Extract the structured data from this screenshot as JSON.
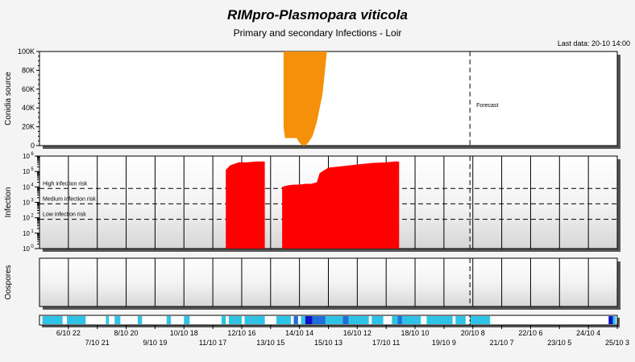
{
  "title": "RIMpro-Plasmopara viticola",
  "subtitle": "Primary and secondary Infections - Loir",
  "last_data": "Last data: 20-10 14:00",
  "chart_data": [
    {
      "type": "area",
      "panel": "conidia",
      "ylabel": "Conidia source",
      "yticks": [
        "0",
        "20K",
        "40K",
        "60K",
        "80K",
        "100K"
      ],
      "ylim": [
        0,
        100000
      ],
      "xlim": [
        0,
        20
      ],
      "forecast_x": 14.9,
      "forecast_label": "Forecast",
      "color": "#f5900a",
      "series": [
        {
          "x": [
            8.45,
            8.5,
            8.65,
            8.8,
            8.9,
            9.0,
            9.1,
            9.2,
            9.3,
            9.45,
            9.6,
            9.8,
            9.95
          ],
          "top": [
            100000,
            100000,
            100000,
            100000,
            100000,
            100000,
            100000,
            100000,
            100000,
            100000,
            100000,
            100000,
            100000
          ],
          "bottom": [
            20000,
            8000,
            8000,
            8000,
            8000,
            3000,
            0,
            0,
            3000,
            10000,
            25000,
            55000,
            100000
          ]
        }
      ]
    },
    {
      "type": "area",
      "panel": "infection",
      "ylabel": "Infection",
      "log_scale": true,
      "ylim_exp": [
        0,
        6
      ],
      "ytick_base": "10",
      "ytick_exps": [
        "0",
        "1",
        "2",
        "3",
        "4",
        "5",
        "6"
      ],
      "thresholds": [
        {
          "label": "High infection risk",
          "exp": 3.9
        },
        {
          "label": "Medium infection risk",
          "exp": 2.9
        },
        {
          "label": "Low infection risk",
          "exp": 1.9
        }
      ],
      "color": "#ff0000",
      "series": [
        {
          "x": [
            6.45,
            6.6,
            6.9,
            7.2,
            7.5,
            7.8
          ],
          "y_exp": [
            5.1,
            5.4,
            5.6,
            5.6,
            5.65,
            5.65
          ]
        },
        {
          "x": [
            8.4,
            8.6,
            8.8,
            9.0,
            9.2,
            9.4,
            9.6,
            9.7,
            10.0,
            10.5,
            11.0,
            11.5,
            12.0,
            12.3,
            12.45
          ],
          "y_exp": [
            4.0,
            4.1,
            4.15,
            4.15,
            4.2,
            4.2,
            4.3,
            4.9,
            5.25,
            5.35,
            5.45,
            5.55,
            5.6,
            5.65,
            5.65
          ]
        }
      ]
    },
    {
      "type": "area",
      "panel": "oospores",
      "ylabel": "Oospores",
      "series": []
    },
    {
      "type": "heatmap",
      "panel": "timeline",
      "segments": [
        {
          "x0": 0.1,
          "x1": 0.8,
          "level": "light"
        },
        {
          "x0": 0.95,
          "x1": 1.6,
          "level": "light"
        },
        {
          "x0": 2.3,
          "x1": 2.4,
          "level": "light"
        },
        {
          "x0": 2.6,
          "x1": 2.8,
          "level": "light"
        },
        {
          "x0": 3.4,
          "x1": 3.55,
          "level": "light"
        },
        {
          "x0": 4.4,
          "x1": 4.55,
          "level": "light"
        },
        {
          "x0": 5.0,
          "x1": 5.2,
          "level": "light"
        },
        {
          "x0": 6.3,
          "x1": 6.45,
          "level": "light"
        },
        {
          "x0": 6.55,
          "x1": 7.0,
          "level": "light"
        },
        {
          "x0": 7.1,
          "x1": 7.8,
          "level": "light"
        },
        {
          "x0": 8.2,
          "x1": 8.7,
          "level": "light"
        },
        {
          "x0": 8.8,
          "x1": 8.95,
          "level": "medium"
        },
        {
          "x0": 9.05,
          "x1": 9.2,
          "level": "light"
        },
        {
          "x0": 9.2,
          "x1": 9.45,
          "level": "dark"
        },
        {
          "x0": 9.45,
          "x1": 9.9,
          "level": "medium"
        },
        {
          "x0": 9.9,
          "x1": 10.5,
          "level": "light"
        },
        {
          "x0": 10.5,
          "x1": 10.7,
          "level": "medium"
        },
        {
          "x0": 10.7,
          "x1": 11.4,
          "level": "light"
        },
        {
          "x0": 11.5,
          "x1": 11.9,
          "level": "light"
        },
        {
          "x0": 12.2,
          "x1": 12.4,
          "level": "light"
        },
        {
          "x0": 12.4,
          "x1": 12.55,
          "level": "medium"
        },
        {
          "x0": 12.55,
          "x1": 13.2,
          "level": "light"
        },
        {
          "x0": 13.4,
          "x1": 14.3,
          "level": "light"
        },
        {
          "x0": 14.4,
          "x1": 14.75,
          "level": "light"
        },
        {
          "x0": 14.9,
          "x1": 15.6,
          "level": "light"
        },
        {
          "x0": 19.7,
          "x1": 19.85,
          "level": "dark"
        },
        {
          "x0": 19.85,
          "x1": 19.95,
          "level": "light"
        }
      ],
      "colors": {
        "light": "#2ec3e6",
        "medium": "#1e6fd8",
        "dark": "#0a10c8"
      }
    }
  ],
  "x_ticks_upper": [
    {
      "x": 1,
      "label": "6/10 22"
    },
    {
      "x": 3,
      "label": "8/10 20"
    },
    {
      "x": 5,
      "label": "10/10 18"
    },
    {
      "x": 7,
      "label": "12/10 16"
    },
    {
      "x": 9,
      "label": "14/10 14"
    },
    {
      "x": 11,
      "label": "16/10 12"
    },
    {
      "x": 13,
      "label": "18/10 10"
    },
    {
      "x": 15,
      "label": "20/10 8"
    },
    {
      "x": 17,
      "label": "22/10 6"
    },
    {
      "x": 19,
      "label": "24/10 4"
    }
  ],
  "x_ticks_lower": [
    {
      "x": 2,
      "label": "7/10 21"
    },
    {
      "x": 4,
      "label": "9/10 19"
    },
    {
      "x": 6,
      "label": "11/10 17"
    },
    {
      "x": 8,
      "label": "13/10 15"
    },
    {
      "x": 10,
      "label": "15/10 13"
    },
    {
      "x": 12,
      "label": "17/10 11"
    },
    {
      "x": 14,
      "label": "19/10 9"
    },
    {
      "x": 16,
      "label": "21/10 7"
    },
    {
      "x": 18,
      "label": "23/10 5"
    },
    {
      "x": 20,
      "label": "25/10 3"
    }
  ],
  "colors": {
    "panel_border": "#000000",
    "grid": "#000000",
    "shadow": "#555555"
  }
}
